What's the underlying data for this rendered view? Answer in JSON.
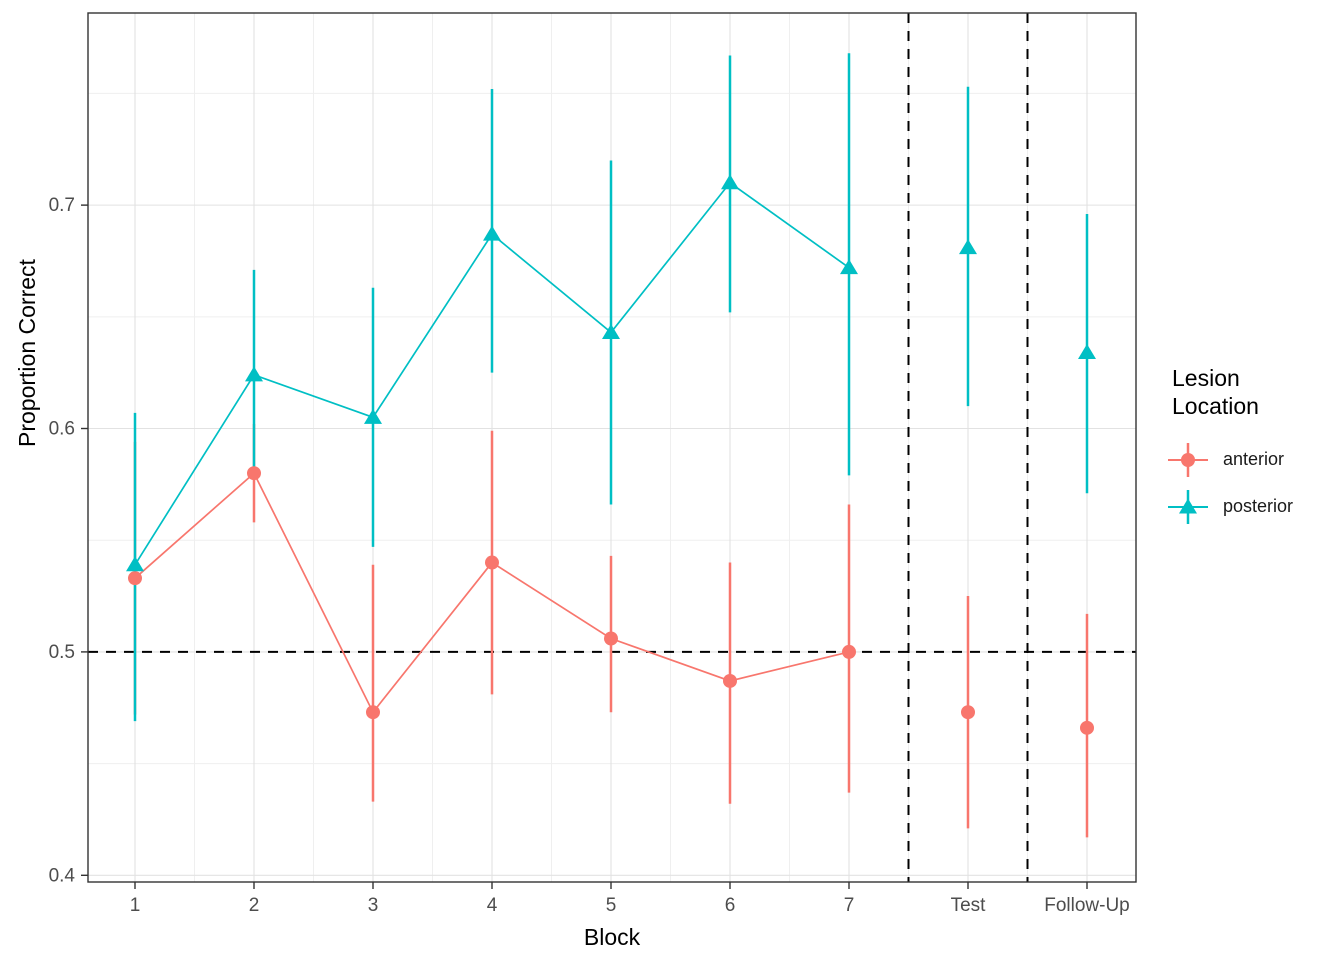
{
  "figure": {
    "xlabel": "Block",
    "ylabel": "Proportion Correct",
    "legend": {
      "title_line1": "Lesion",
      "title_line2": "Location",
      "items": [
        {
          "label": "anterior",
          "color": "#F8766D",
          "marker": "circle"
        },
        {
          "label": "posterior",
          "color": "#00BFC4",
          "marker": "triangle"
        }
      ]
    }
  },
  "chart_data": {
    "type": "line",
    "title": "",
    "xlabel": "Block",
    "ylabel": "Proportion Correct",
    "categories": [
      "1",
      "2",
      "3",
      "4",
      "5",
      "6",
      "7",
      "Test",
      "Follow-Up"
    ],
    "connected_categories": [
      "1",
      "2",
      "3",
      "4",
      "5",
      "6",
      "7"
    ],
    "series": [
      {
        "name": "anterior",
        "color": "#F8766D",
        "marker": "circle",
        "values": [
          0.533,
          0.58,
          0.473,
          0.54,
          0.506,
          0.487,
          0.5,
          0.473,
          0.466
        ],
        "ci_lower": [
          0.472,
          0.558,
          0.433,
          0.481,
          0.473,
          0.432,
          0.437,
          0.421,
          0.417
        ],
        "ci_upper": [
          0.594,
          0.602,
          0.539,
          0.599,
          0.543,
          0.54,
          0.566,
          0.525,
          0.517
        ]
      },
      {
        "name": "posterior",
        "color": "#00BFC4",
        "marker": "triangle",
        "values": [
          0.539,
          0.624,
          0.605,
          0.687,
          0.643,
          0.71,
          0.672,
          0.681,
          0.634
        ],
        "ci_lower": [
          0.469,
          0.578,
          0.547,
          0.625,
          0.566,
          0.652,
          0.579,
          0.61,
          0.571
        ],
        "ci_upper": [
          0.607,
          0.671,
          0.663,
          0.752,
          0.72,
          0.767,
          0.768,
          0.753,
          0.696
        ]
      }
    ],
    "yticks": [
      0.4,
      0.5,
      0.6,
      0.7
    ],
    "ytick_labels": [
      "0.4",
      "0.5",
      "0.6",
      "0.7"
    ],
    "yticks_minor": [
      0.45,
      0.55,
      0.65,
      0.75
    ],
    "ylim": [
      0.397,
      0.786
    ],
    "reference_lines": {
      "hline": 0.5,
      "vlines_between_categories": [
        [
          "7",
          "Test"
        ],
        [
          "Test",
          "Follow-Up"
        ]
      ]
    },
    "grid": "major+minor",
    "legend_position": "right",
    "panel_border": true,
    "colors": {
      "grid_major": "#E2E2E2",
      "grid_minor": "#EFEFEF",
      "panel_border": "#333333",
      "tick_label": "#4D4D4D",
      "reference_line": "#000000"
    }
  }
}
